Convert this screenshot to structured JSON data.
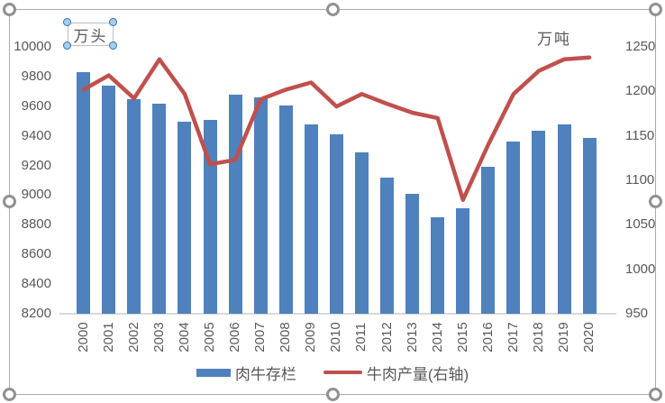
{
  "chart": {
    "left_axis_title": "万头",
    "right_axis_title": "万吨",
    "left_axis_ticks": [
      10000,
      9800,
      9600,
      9400,
      9200,
      9000,
      8800,
      8600,
      8400,
      8200
    ],
    "right_axis_ticks": [
      1250,
      1200,
      1150,
      1100,
      1050,
      1000,
      950
    ],
    "colors": {
      "bar": "#4F81BD",
      "line": "#C0504D",
      "axis_text": "#595959",
      "axis_line": "#D9D9D9",
      "selection_border": "#ABABAB",
      "selection_handle": "#919191",
      "textbox_handle": "#A8CCE9"
    }
  },
  "chart_data": {
    "type": "bar",
    "combo": "bar+line",
    "categories": [
      "2000",
      "2001",
      "2002",
      "2003",
      "2004",
      "2005",
      "2006",
      "2007",
      "2008",
      "2009",
      "2010",
      "2011",
      "2012",
      "2013",
      "2014",
      "2015",
      "2016",
      "2017",
      "2018",
      "2019",
      "2020"
    ],
    "series": [
      {
        "name": "肉牛存栏",
        "type": "bar",
        "axis": "left",
        "color": "#4F81BD",
        "values": [
          9830,
          9740,
          9645,
          9615,
          9495,
          9510,
          9675,
          9660,
          9605,
          9475,
          9410,
          9290,
          9120,
          9010,
          8850,
          8910,
          9190,
          9360,
          9435,
          9480,
          9385
        ]
      },
      {
        "name": "牛肉产量(右轴)",
        "type": "line",
        "axis": "right",
        "color": "#C0504D",
        "values": [
          1202,
          1218,
          1192,
          1236,
          1197,
          1118,
          1123,
          1191,
          1202,
          1210,
          1183,
          1197,
          1186,
          1176,
          1170,
          1078,
          1140,
          1197,
          1223,
          1236,
          1238
        ]
      }
    ],
    "left_axis": {
      "title": "万头",
      "min": 8200,
      "max": 10000,
      "interval": 200
    },
    "right_axis": {
      "title": "万吨",
      "min": 950,
      "max": 1250,
      "interval": 50
    },
    "legend_position": "bottom",
    "grid": false,
    "title": ""
  }
}
